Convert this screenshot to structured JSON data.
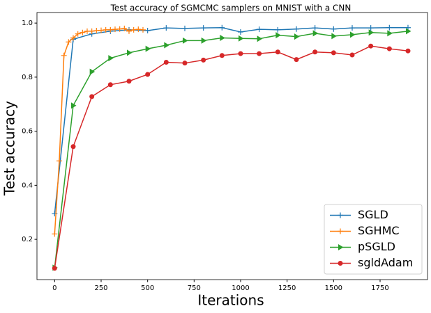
{
  "chart_data": {
    "type": "line",
    "title": "Test accuracy of SGMCMC samplers on MNIST with a CNN",
    "x_label": "Iterations",
    "y_label": "Test accuracy",
    "xlim": [
      -95,
      2005
    ],
    "ylim": [
      0.051,
      1.039
    ],
    "xticks": [
      0,
      250,
      500,
      750,
      1000,
      1250,
      1500,
      1750
    ],
    "yticks": [
      0.2,
      0.4,
      0.6,
      0.8,
      {
        "value": 1,
        "label": "1.0"
      }
    ],
    "legend_position": "lower right",
    "series": [
      {
        "name": "SGLD",
        "color": "#1f77b4",
        "marker": "plus",
        "x": [
          0,
          100,
          200,
          300,
          400,
          500,
          600,
          700,
          800,
          900,
          1000,
          1100,
          1200,
          1300,
          1400,
          1500,
          1600,
          1700,
          1800,
          1900
        ],
        "values": [
          0.295,
          0.94,
          0.96,
          0.97,
          0.975,
          0.972,
          0.982,
          0.98,
          0.982,
          0.983,
          0.967,
          0.977,
          0.975,
          0.978,
          0.982,
          0.978,
          0.982,
          0.982,
          0.983,
          0.983
        ]
      },
      {
        "name": "SGHMC",
        "color": "#ff7f0e",
        "marker": "plus",
        "x": [
          0,
          25,
          50,
          75,
          100,
          125,
          150,
          175,
          200,
          225,
          250,
          275,
          300,
          325,
          350,
          375,
          400,
          425,
          450,
          475
        ],
        "values": [
          0.22,
          0.49,
          0.88,
          0.93,
          0.945,
          0.96,
          0.965,
          0.97,
          0.97,
          0.972,
          0.973,
          0.975,
          0.975,
          0.977,
          0.978,
          0.98,
          0.97,
          0.975,
          0.977,
          0.975
        ]
      },
      {
        "name": "pSGLD",
        "color": "#2ca02c",
        "marker": "triangle-right",
        "x": [
          0,
          100,
          200,
          300,
          400,
          500,
          600,
          700,
          800,
          900,
          1000,
          1100,
          1200,
          1300,
          1400,
          1500,
          1600,
          1700,
          1800,
          1900
        ],
        "values": [
          0.095,
          0.695,
          0.82,
          0.87,
          0.89,
          0.905,
          0.918,
          0.935,
          0.935,
          0.945,
          0.943,
          0.942,
          0.955,
          0.95,
          0.962,
          0.952,
          0.957,
          0.965,
          0.962,
          0.97
        ]
      },
      {
        "name": "sgldAdam",
        "color": "#d62728",
        "marker": "circle",
        "x": [
          0,
          100,
          200,
          300,
          400,
          500,
          600,
          700,
          800,
          900,
          1000,
          1100,
          1200,
          1300,
          1400,
          1500,
          1600,
          1700,
          1800,
          1900
        ],
        "values": [
          0.093,
          0.543,
          0.728,
          0.772,
          0.785,
          0.81,
          0.855,
          0.852,
          0.863,
          0.88,
          0.887,
          0.887,
          0.893,
          0.865,
          0.893,
          0.89,
          0.882,
          0.915,
          0.905,
          0.897
        ]
      }
    ]
  }
}
